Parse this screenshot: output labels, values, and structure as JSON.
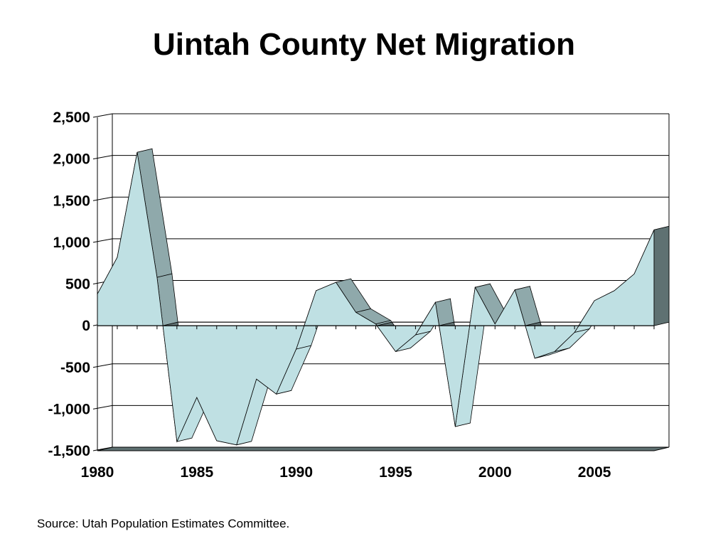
{
  "slide": {
    "title": "Uintah County Net Migration",
    "source": "Source: Utah Population Estimates Committee."
  },
  "colors": {
    "fill_front": "#bfe0e3",
    "ribbon_up": "#8fa9ab",
    "ribbon_down": "#5f7172",
    "grid": "#000000",
    "background": "#ffffff"
  },
  "chart_data": {
    "type": "area",
    "style": "3d-ribbon",
    "title": "Uintah County Net Migration",
    "xlabel": "",
    "ylabel": "",
    "x": [
      1980,
      1981,
      1982,
      1983,
      1984,
      1985,
      1986,
      1987,
      1988,
      1989,
      1990,
      1991,
      1992,
      1993,
      1994,
      1995,
      1996,
      1997,
      1998,
      1999,
      2000,
      2001,
      2002,
      2003,
      2004,
      2005,
      2006,
      2007,
      2008
    ],
    "values": [
      380,
      820,
      2080,
      580,
      -1390,
      -860,
      -1380,
      -1430,
      -640,
      -820,
      -280,
      420,
      520,
      160,
      20,
      -310,
      -110,
      280,
      -1210,
      460,
      20,
      430,
      -390,
      -310,
      -80,
      300,
      420,
      620,
      1150
    ],
    "xlim": [
      1980,
      2008
    ],
    "ylim": [
      -1500,
      2500
    ],
    "x_ticks": [
      1980,
      1985,
      1990,
      1995,
      2000,
      2005
    ],
    "x_tick_labels": [
      "1980",
      "1985",
      "1990",
      "1995",
      "2000",
      "2005"
    ],
    "y_ticks": [
      -1500,
      -1000,
      -500,
      0,
      500,
      1000,
      1500,
      2000,
      2500
    ],
    "y_tick_labels": [
      "-1,500",
      "-1,000",
      "-500",
      "0",
      "500",
      "1,000",
      "1,500",
      "2,000",
      "2,500"
    ],
    "grid": true,
    "legend": "none"
  }
}
